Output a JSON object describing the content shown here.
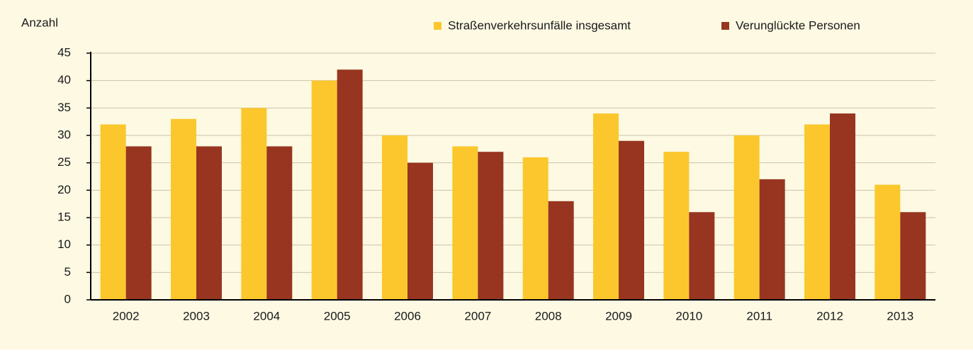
{
  "chart_data": {
    "type": "bar",
    "ylabel": "Anzahl",
    "categories": [
      "2002",
      "2003",
      "2004",
      "2005",
      "2006",
      "2007",
      "2008",
      "2009",
      "2010",
      "2011",
      "2012",
      "2013"
    ],
    "series": [
      {
        "name": "Straßenverkehrsunfälle insgesamt",
        "color": "#fbc72c",
        "values": [
          32,
          33,
          35,
          40,
          30,
          28,
          26,
          34,
          27,
          30,
          32,
          21
        ]
      },
      {
        "name": "Verunglückte Personen",
        "color": "#973520",
        "values": [
          28,
          28,
          28,
          42,
          25,
          27,
          18,
          29,
          16,
          22,
          34,
          16
        ]
      }
    ],
    "ylim": [
      0,
      45
    ],
    "yticks": [
      0,
      5,
      10,
      15,
      20,
      25,
      30,
      35,
      40,
      45
    ],
    "grid": true
  }
}
